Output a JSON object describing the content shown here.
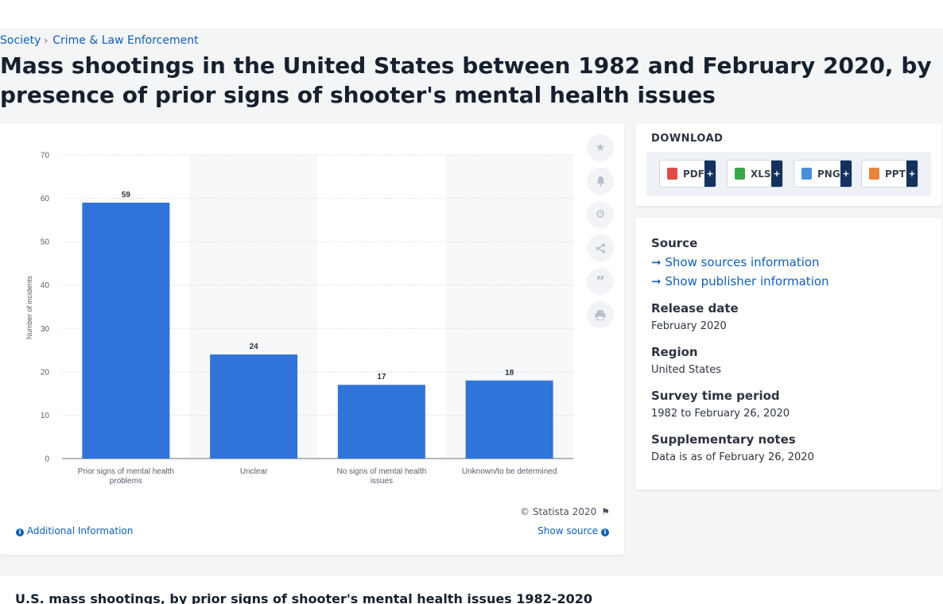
{
  "breadcrumb": {
    "items": [
      "Society",
      "Crime & Law Enforcement"
    ]
  },
  "page": {
    "title": "Mass shootings in the United States between 1982 and February 2020, by presence of prior signs of shooter's mental health issues"
  },
  "chart_data": {
    "type": "bar",
    "categories": [
      "Prior signs of mental health problems",
      "Unclear",
      "No signs of mental health issues",
      "Unknown/to be determined"
    ],
    "values": [
      59,
      24,
      17,
      18
    ],
    "xlabel": "",
    "ylabel": "Number of incidents",
    "ylim": [
      0,
      70
    ],
    "yticks": [
      0,
      10,
      20,
      30,
      40,
      50,
      60,
      70
    ],
    "bar_color": "#3074d9",
    "data_labels": true,
    "grid": true
  },
  "chart_footer": {
    "copyright": "© Statista 2020",
    "additional_info": "Additional Information",
    "show_source": "Show source"
  },
  "tools": [
    "star-icon",
    "bell-icon",
    "gear-icon",
    "share-icon",
    "quote-icon",
    "print-icon"
  ],
  "download": {
    "title": "DOWNLOAD",
    "formats": [
      {
        "label": "PDF",
        "color": "#e04b4b"
      },
      {
        "label": "XLS",
        "color": "#3aa64a"
      },
      {
        "label": "PNG",
        "color": "#4a8fd8"
      },
      {
        "label": "PPT",
        "color": "#e8853a"
      }
    ],
    "plus": "+"
  },
  "info": {
    "source_label": "Source",
    "show_sources": "Show sources information",
    "show_publisher": "Show publisher information",
    "release_label": "Release date",
    "release_value": "February 2020",
    "region_label": "Region",
    "region_value": "United States",
    "period_label": "Survey time period",
    "period_value": "1982 to February 26, 2020",
    "notes_label": "Supplementary notes",
    "notes_value": "Data is as of February 26, 2020"
  },
  "bottom": {
    "title": "U.S. mass shootings, by prior signs of shooter's mental health issues 1982-2020"
  }
}
